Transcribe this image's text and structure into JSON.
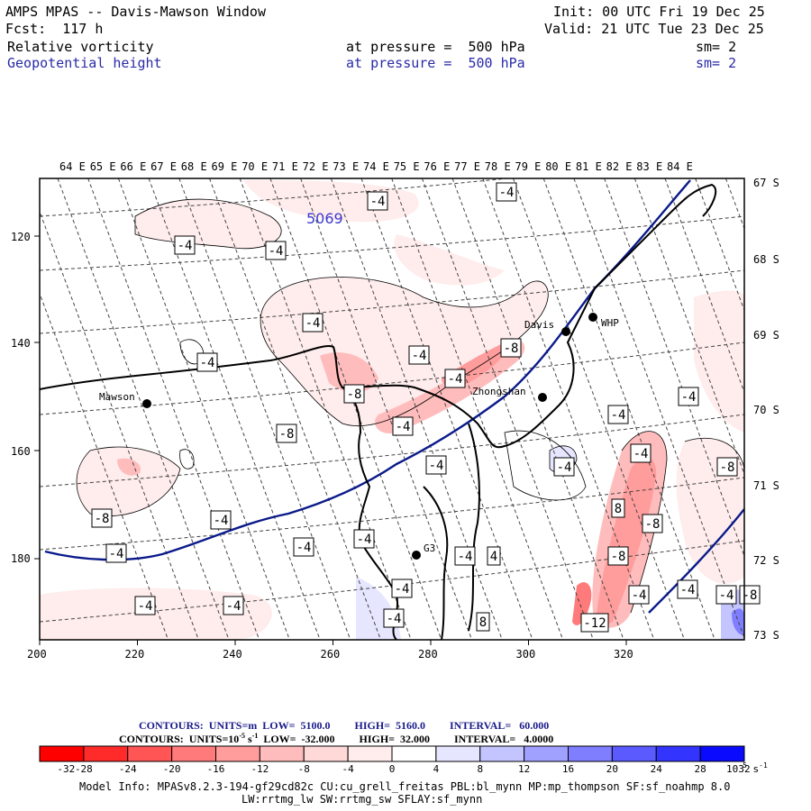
{
  "header": {
    "title": "AMPS MPAS -- Davis-Mawson Window",
    "init": "Init: 00 UTC Fri 19 Dec 25",
    "fcst": "Fcst:  117 h",
    "valid": "Valid: 21 UTC Tue 23 Dec 25",
    "fields": [
      {
        "name": "Relative vorticity",
        "level": "at pressure =  500 hPa",
        "sm": "sm= 2",
        "color": "#000000"
      },
      {
        "name": "Geopotential height",
        "level": "at pressure =  500 hPa",
        "sm": "sm= 2",
        "color": "#2a2aa8"
      }
    ]
  },
  "map": {
    "lon_labels": [
      "64 E",
      "65 E",
      "66 E",
      "67 E",
      "68 E",
      "69 E",
      "70 E",
      "71 E",
      "72 E",
      "73 E",
      "74 E",
      "75 E",
      "76 E",
      "77 E",
      "78 E",
      "79 E",
      "80 E",
      "81 E",
      "82 E",
      "83 E",
      "84 E"
    ],
    "lat_labels": [
      "67 S",
      "68 S",
      "69 S",
      "70 S",
      "71 S",
      "72 S",
      "73 S"
    ],
    "x_ticks": [
      "200",
      "220",
      "240",
      "260",
      "280",
      "300",
      "320"
    ],
    "y_ticks": [
      "120",
      "140",
      "160",
      "180"
    ],
    "stations": [
      {
        "name": "Mawson"
      },
      {
        "name": "Davis"
      },
      {
        "name": "WHP"
      },
      {
        "name": "Zhongshan"
      },
      {
        "name": "G3"
      }
    ],
    "height_label": "5069",
    "contour_labels": [
      "-4",
      "-4",
      "-4",
      "-4",
      "-4",
      "-4",
      "-4",
      "-8",
      "-4",
      "-8",
      "-4",
      "-8",
      "-4",
      "-4",
      "-4",
      "-4",
      "-8",
      "8",
      "-8",
      "-4",
      "-8",
      "-4",
      "-8",
      "4",
      "-4",
      "-4",
      "4",
      "4",
      "-4",
      "-4",
      "-4",
      "-4",
      "-4",
      "8",
      "-4",
      "-12",
      "-4",
      "-8",
      "-4",
      "-4"
    ],
    "colors": {
      "height": "#0a1a8a",
      "coast": "#000000",
      "grid": "#555555"
    }
  },
  "legend": {
    "contours_height": "CONTOURS:  UNITS=m  LOW=  5100.0         HIGH=  5160.0         INTERVAL=   60.000",
    "contours_vort": "CONTOURS:  UNITS=10",
    "contours_vort_sup": "-5",
    "contours_vort_rest": " s",
    "contours_vort_sup2": "-1",
    "contours_vort_tail": "  LOW=  -32.000         HIGH=  32.000         INTERVAL=   4.0000",
    "scale_labels": [
      "-32",
      "-28",
      "-24",
      "-20",
      "-16",
      "-12",
      "-8",
      "-4",
      "0",
      "4",
      "8",
      "12",
      "16",
      "20",
      "24",
      "28",
      "32"
    ],
    "scale_colors": [
      "#ff0000",
      "#ff2a2a",
      "#ff5555",
      "#ff7a7a",
      "#ff9c9c",
      "#ffbcbc",
      "#ffd8d8",
      "#ffecec",
      "#ffffff",
      "#ffffff",
      "#e6e6ff",
      "#c4c4ff",
      "#a0a0ff",
      "#7e7eff",
      "#5a5aff",
      "#3434ff",
      "#0a0aff"
    ],
    "scale_units": "10",
    "scale_units_sup": "-5",
    "scale_units_tail": " s",
    "scale_units_sup2": "-1"
  },
  "model_info": {
    "line1": "Model Info: MPASv8.2.3-194-gf29cd82c CU:cu_grell_freitas PBL:bl_mynn MP:mp_thompson SF:sf_noahmp 8.0",
    "line2": "LW:rrtmg_lw SW:rrtmg_sw SFLAY:sf_mynn"
  }
}
